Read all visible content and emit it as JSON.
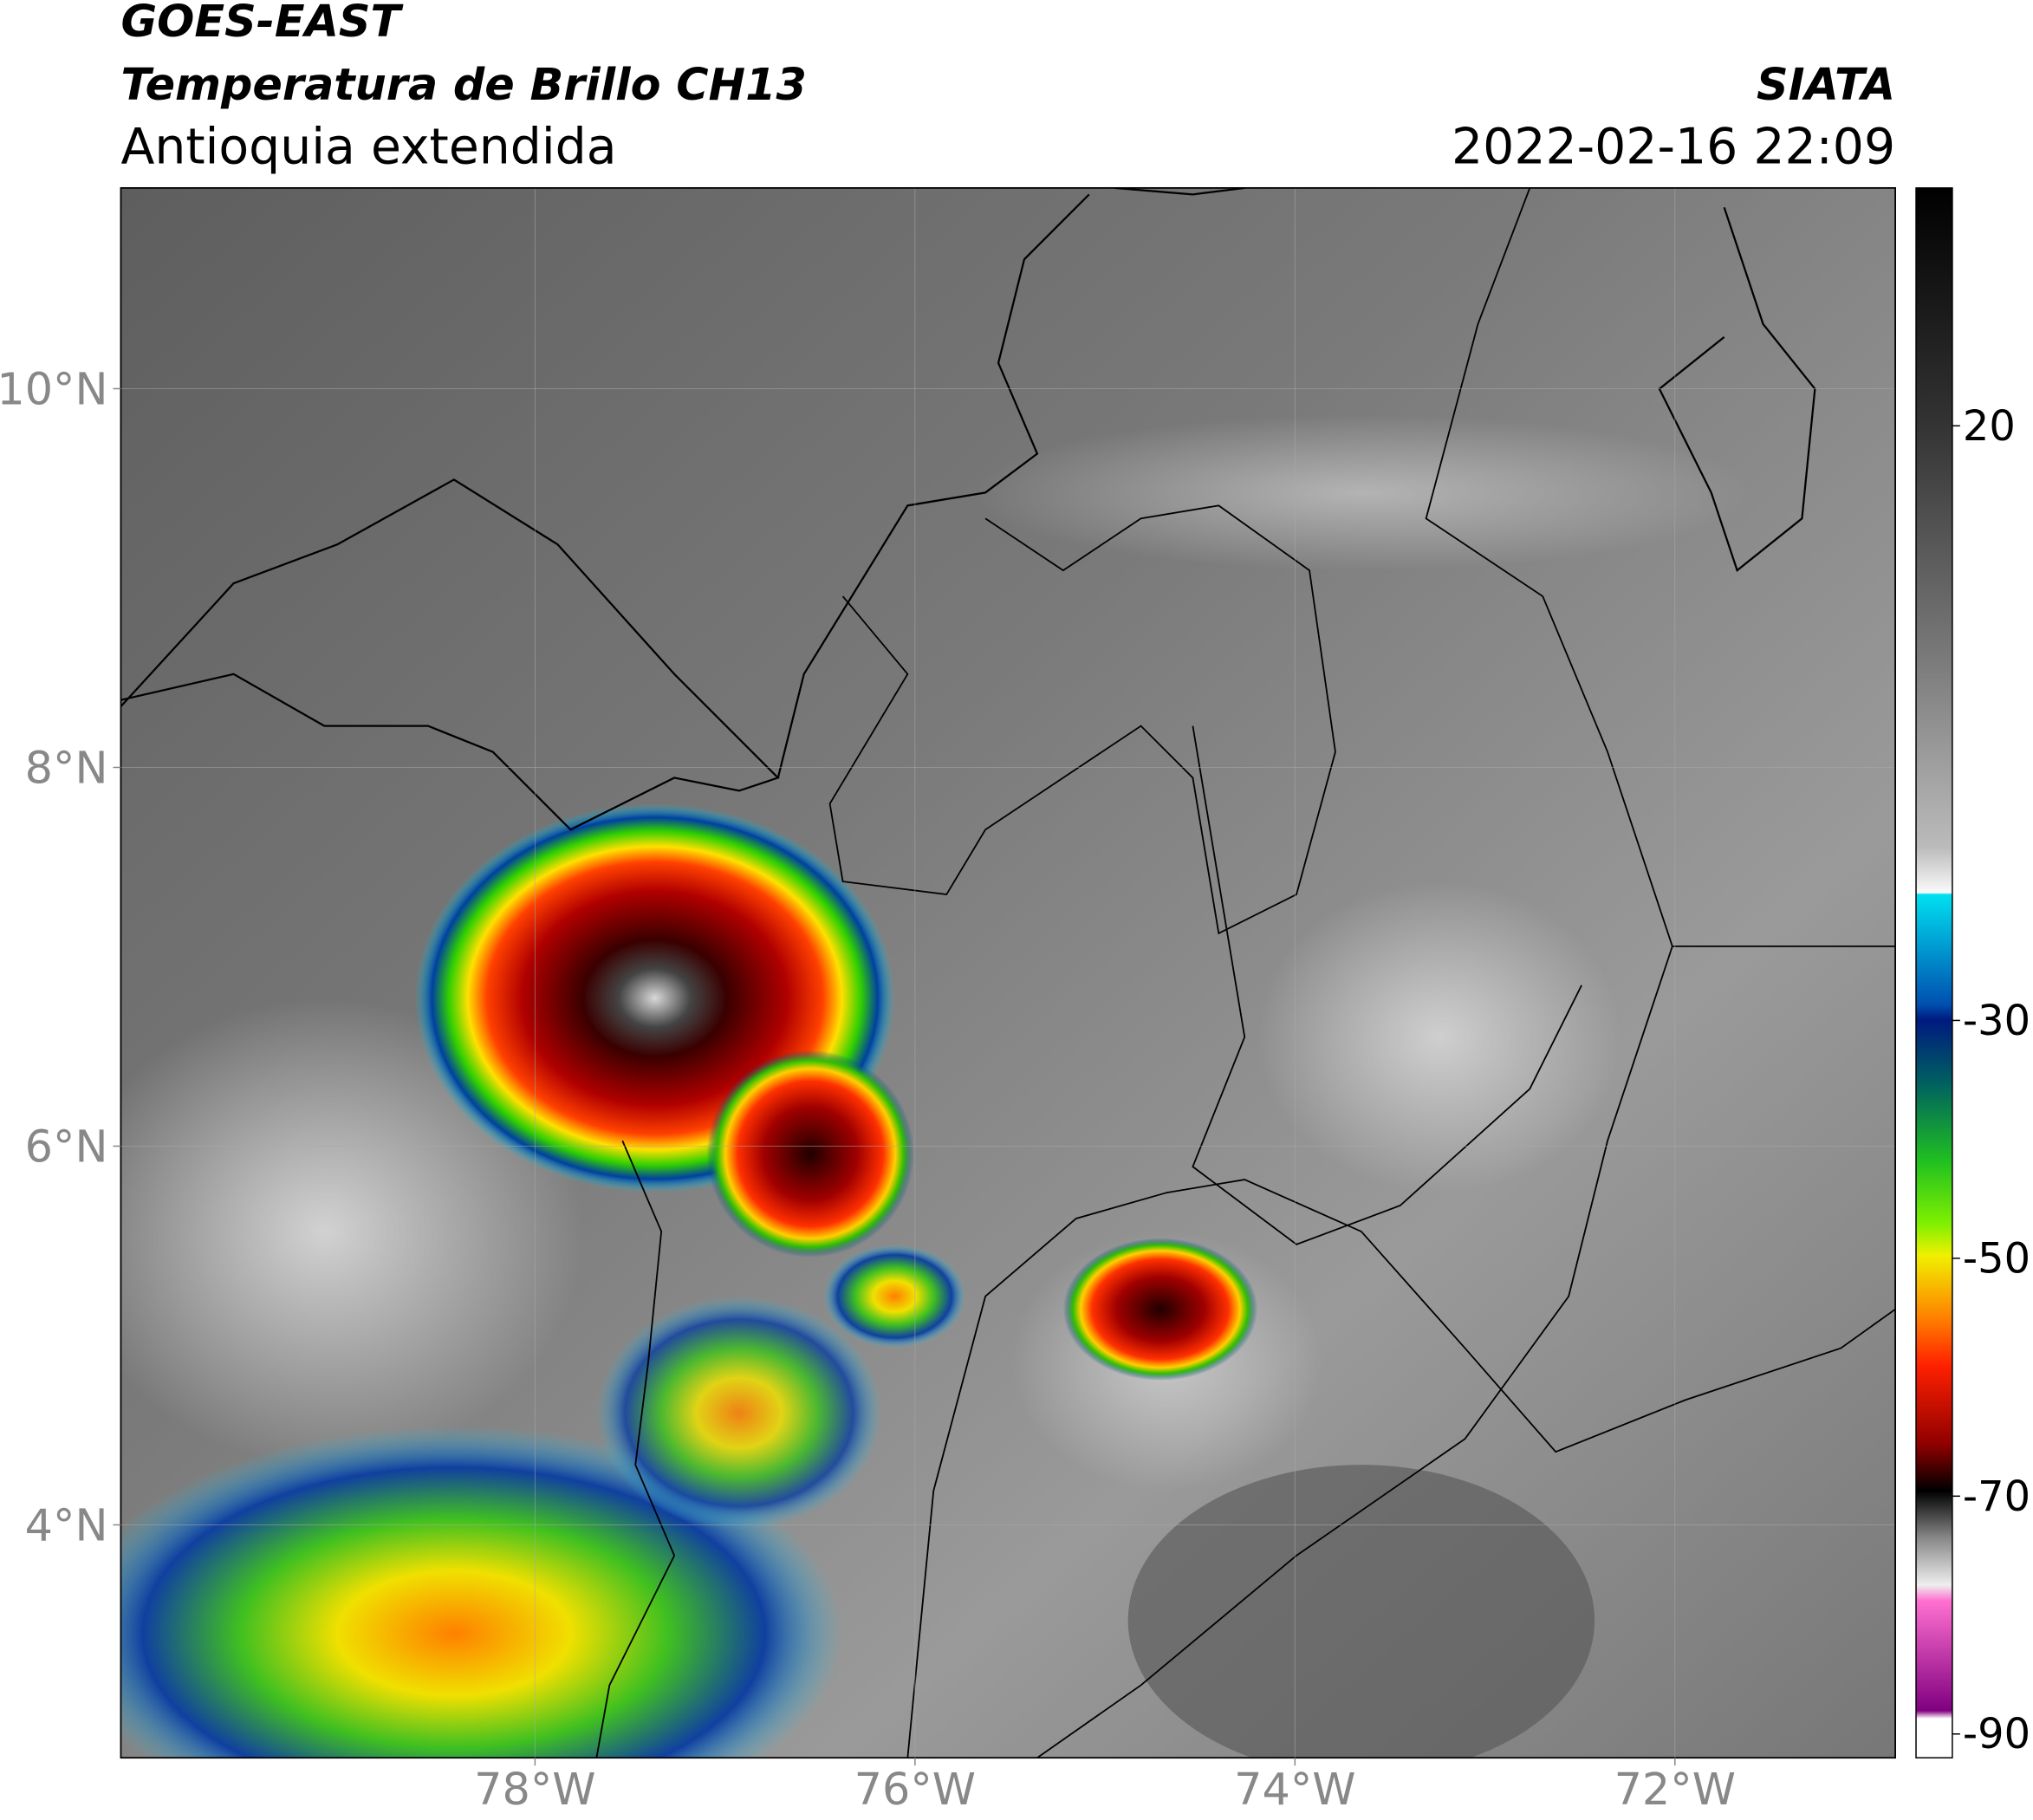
{
  "header": {
    "satellite": "GOES-EAST",
    "product": "Temperatura de Brillo CH13",
    "region": "Antioquia extendida",
    "source": "SIATA",
    "datetime": "2022-02-16 22:09"
  },
  "map": {
    "xlim": [
      -80.18,
      -70.84
    ],
    "ylim": [
      2.77,
      11.06
    ],
    "xticks": [
      {
        "value": -78,
        "label": "78°W"
      },
      {
        "value": -76,
        "label": "76°W"
      },
      {
        "value": -74,
        "label": "74°W"
      },
      {
        "value": -72,
        "label": "72°W"
      }
    ],
    "yticks": [
      {
        "value": 4,
        "label": "4°N"
      },
      {
        "value": 6,
        "label": "6°N"
      },
      {
        "value": 8,
        "label": "8°N"
      },
      {
        "value": 10,
        "label": "10°N"
      }
    ],
    "grid": true
  },
  "colorbar": {
    "lim": [
      -92,
      40
    ],
    "ticks": [
      20,
      -30,
      -50,
      -70,
      -90
    ]
  }
}
